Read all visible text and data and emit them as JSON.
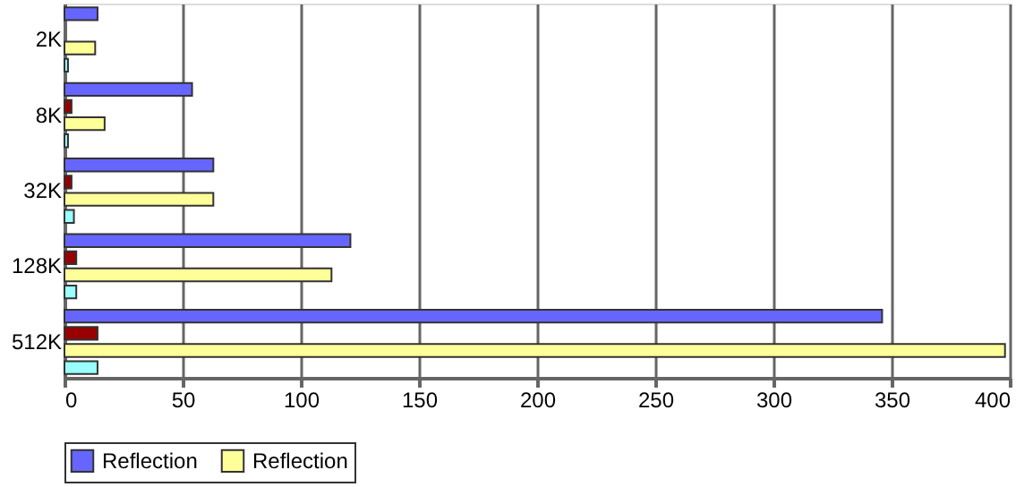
{
  "chart_data": {
    "type": "bar",
    "orientation": "horizontal",
    "categories": [
      "2K",
      "8K",
      "32K",
      "128K",
      "512K"
    ],
    "series": [
      {
        "name": "Reflection",
        "color": "#6666ff",
        "values": [
          14,
          54,
          63,
          121,
          346
        ]
      },
      {
        "color": "#990000",
        "values": [
          null,
          3,
          3,
          5,
          14
        ]
      },
      {
        "name": "Reflection",
        "color": "#ffff99",
        "values": [
          13,
          17,
          63,
          113,
          398
        ]
      },
      {
        "color": "#99ffff",
        "values": [
          1.5,
          1.5,
          4,
          5,
          14
        ]
      }
    ],
    "xlim": [
      0,
      400
    ],
    "xticks": [
      0,
      50,
      100,
      150,
      200,
      250,
      300,
      350,
      400
    ],
    "grid": "x",
    "legend": "bottom"
  }
}
